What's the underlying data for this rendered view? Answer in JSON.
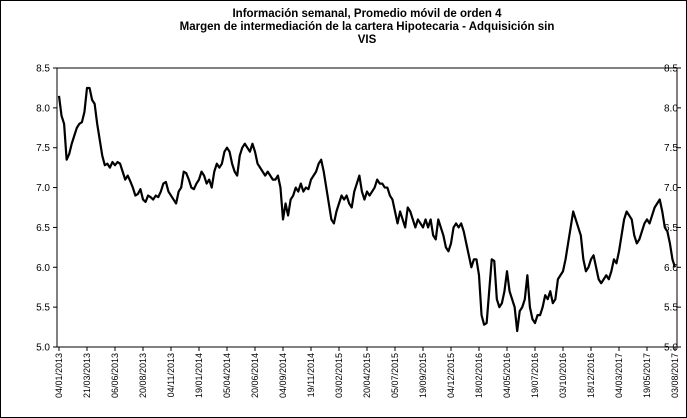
{
  "chart_data": {
    "type": "line",
    "title": [
      "Información semanal, Promedio móvil de orden 4",
      "Margen de intermediación de la cartera  Hipotecaria - Adquisición sin",
      "VIS"
    ],
    "categories": [
      "04/01/2013",
      null,
      null,
      null,
      null,
      null,
      null,
      null,
      null,
      null,
      null,
      "21/03/2013",
      null,
      null,
      null,
      null,
      null,
      null,
      null,
      null,
      null,
      null,
      "06/06/2013",
      null,
      null,
      null,
      null,
      null,
      null,
      null,
      null,
      null,
      null,
      "20/08/2013",
      null,
      null,
      null,
      null,
      null,
      null,
      null,
      null,
      null,
      null,
      "04/11/2013",
      null,
      null,
      null,
      null,
      null,
      null,
      null,
      null,
      null,
      null,
      "19/01/2014",
      null,
      null,
      null,
      null,
      null,
      null,
      null,
      null,
      null,
      null,
      "05/04/2014",
      null,
      null,
      null,
      null,
      null,
      null,
      null,
      null,
      null,
      null,
      "20/06/2014",
      null,
      null,
      null,
      null,
      null,
      null,
      null,
      null,
      null,
      null,
      "04/09/2014",
      null,
      null,
      null,
      null,
      null,
      null,
      null,
      null,
      null,
      null,
      "19/11/2014",
      null,
      null,
      null,
      null,
      null,
      null,
      null,
      null,
      null,
      null,
      "03/02/2015",
      null,
      null,
      null,
      null,
      null,
      null,
      null,
      null,
      null,
      null,
      "20/04/2015",
      null,
      null,
      null,
      null,
      null,
      null,
      null,
      null,
      null,
      null,
      "05/07/2015",
      null,
      null,
      null,
      null,
      null,
      null,
      null,
      null,
      null,
      null,
      "19/09/2015",
      null,
      null,
      null,
      null,
      null,
      null,
      null,
      null,
      null,
      null,
      "04/12/2015",
      null,
      null,
      null,
      null,
      null,
      null,
      null,
      null,
      null,
      null,
      "18/02/2016",
      null,
      null,
      null,
      null,
      null,
      null,
      null,
      null,
      null,
      null,
      "04/05/2016",
      null,
      null,
      null,
      null,
      null,
      null,
      null,
      null,
      null,
      null,
      "19/07/2016",
      null,
      null,
      null,
      null,
      null,
      null,
      null,
      null,
      null,
      null,
      "03/10/2016",
      null,
      null,
      null,
      null,
      null,
      null,
      null,
      null,
      null,
      null,
      "18/12/2016",
      null,
      null,
      null,
      null,
      null,
      null,
      null,
      null,
      null,
      null,
      "04/03/2017",
      null,
      null,
      null,
      null,
      null,
      null,
      null,
      null,
      null,
      null,
      "19/05/2017",
      null,
      null,
      null,
      null,
      null,
      null,
      null,
      null,
      null,
      null,
      "03/08/2017"
    ],
    "values": [
      8.15,
      7.9,
      7.8,
      7.35,
      7.42,
      7.55,
      7.65,
      7.75,
      7.8,
      7.82,
      7.95,
      8.25,
      8.25,
      8.1,
      8.05,
      7.8,
      7.6,
      7.4,
      7.28,
      7.3,
      7.25,
      7.32,
      7.28,
      7.32,
      7.3,
      7.2,
      7.1,
      7.15,
      7.08,
      7.0,
      6.9,
      6.92,
      6.98,
      6.85,
      6.82,
      6.9,
      6.88,
      6.85,
      6.9,
      6.88,
      6.95,
      7.05,
      7.07,
      6.95,
      6.9,
      6.85,
      6.8,
      6.95,
      7.0,
      7.2,
      7.18,
      7.1,
      7.0,
      6.98,
      7.05,
      7.1,
      7.2,
      7.15,
      7.05,
      7.1,
      7.0,
      7.2,
      7.3,
      7.25,
      7.3,
      7.45,
      7.5,
      7.45,
      7.3,
      7.2,
      7.15,
      7.4,
      7.5,
      7.55,
      7.5,
      7.45,
      7.55,
      7.45,
      7.3,
      7.25,
      7.2,
      7.15,
      7.2,
      7.15,
      7.1,
      7.1,
      7.15,
      7.0,
      6.6,
      6.8,
      6.65,
      6.85,
      6.9,
      7.0,
      6.95,
      7.05,
      6.95,
      7.0,
      6.98,
      7.1,
      7.15,
      7.2,
      7.3,
      7.35,
      7.2,
      7.0,
      6.8,
      6.6,
      6.55,
      6.7,
      6.8,
      6.9,
      6.85,
      6.9,
      6.8,
      6.75,
      6.95,
      7.05,
      7.15,
      6.95,
      6.85,
      6.95,
      6.9,
      6.95,
      7.0,
      7.1,
      7.05,
      7.05,
      7.0,
      7.0,
      6.9,
      6.85,
      6.7,
      6.55,
      6.7,
      6.6,
      6.5,
      6.75,
      6.7,
      6.6,
      6.5,
      6.6,
      6.55,
      6.5,
      6.6,
      6.5,
      6.6,
      6.4,
      6.35,
      6.6,
      6.5,
      6.4,
      6.25,
      6.2,
      6.3,
      6.5,
      6.55,
      6.5,
      6.55,
      6.45,
      6.3,
      6.15,
      6.0,
      6.1,
      6.1,
      5.9,
      5.4,
      5.28,
      5.3,
      5.7,
      6.1,
      6.08,
      5.6,
      5.5,
      5.55,
      5.7,
      5.95,
      5.7,
      5.6,
      5.5,
      5.2,
      5.45,
      5.5,
      5.6,
      5.9,
      5.5,
      5.35,
      5.3,
      5.4,
      5.4,
      5.5,
      5.65,
      5.6,
      5.7,
      5.55,
      5.6,
      5.85,
      5.9,
      5.95,
      6.1,
      6.3,
      6.5,
      6.7,
      6.6,
      6.5,
      6.4,
      6.1,
      5.95,
      6.0,
      6.1,
      6.15,
      6.0,
      5.85,
      5.8,
      5.85,
      5.9,
      5.85,
      5.95,
      6.1,
      6.05,
      6.2,
      6.4,
      6.6,
      6.7,
      6.65,
      6.6,
      6.4,
      6.3,
      6.35,
      6.45,
      6.55,
      6.6,
      6.55,
      6.65,
      6.75,
      6.8,
      6.85,
      6.7,
      6.5,
      6.45,
      6.3,
      6.1,
      6.0
    ],
    "color": "#000000",
    "ylim": [
      5,
      8.5
    ],
    "yticks": [
      {
        "value": 5,
        "label": "5.0"
      },
      5.5,
      {
        "value": 6,
        "label": "6.0"
      },
      6.5,
      {
        "value": 7,
        "label": "7.0"
      },
      7.5,
      {
        "value": 8,
        "label": "8.0"
      },
      8.5
    ],
    "y2lim": [
      5,
      8.5
    ],
    "y2ticks": [
      {
        "value": 5,
        "label": "5.0"
      },
      5.5,
      {
        "value": 6,
        "label": "6.0"
      },
      6.5,
      {
        "value": 7,
        "label": "7.0"
      },
      7.5,
      {
        "value": 8,
        "label": "8.0"
      },
      8.5
    ],
    "grid": false
  }
}
